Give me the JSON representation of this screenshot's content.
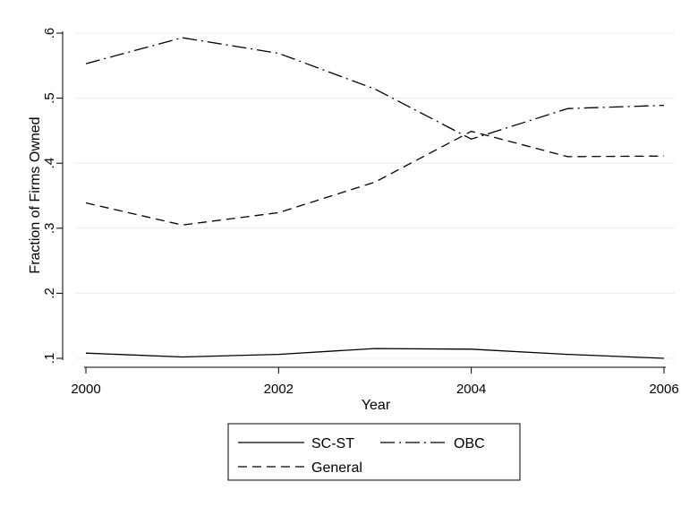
{
  "chart_data": {
    "type": "line",
    "title": "",
    "xlabel": "Year",
    "ylabel": "Fraction of Firms Owned",
    "x": [
      2000,
      2001,
      2002,
      2003,
      2004,
      2005,
      2006
    ],
    "xlim": [
      2000,
      2006
    ],
    "ylim": [
      0.1,
      0.6
    ],
    "xticks": [
      2000,
      2002,
      2004,
      2006
    ],
    "xtick_labels": [
      "2000",
      "2002",
      "2004",
      "2006"
    ],
    "yticks": [
      0.1,
      0.2,
      0.3,
      0.4,
      0.5,
      0.6
    ],
    "ytick_labels": [
      ".1",
      ".2",
      ".3",
      ".4",
      ".5",
      ".6"
    ],
    "grid": true,
    "legend_position": "bottom",
    "series": [
      {
        "name": "SC-ST",
        "style": "solid",
        "color": "#000000",
        "values": [
          0.108,
          0.102,
          0.106,
          0.115,
          0.114,
          0.106,
          0.1
        ]
      },
      {
        "name": "OBC",
        "style": "dash-dot",
        "color": "#000000",
        "values": [
          0.553,
          0.593,
          0.569,
          0.514,
          0.437,
          0.484,
          0.489
        ]
      },
      {
        "name": "General",
        "style": "dashed",
        "color": "#000000",
        "values": [
          0.339,
          0.305,
          0.324,
          0.371,
          0.449,
          0.41,
          0.411
        ]
      }
    ]
  }
}
